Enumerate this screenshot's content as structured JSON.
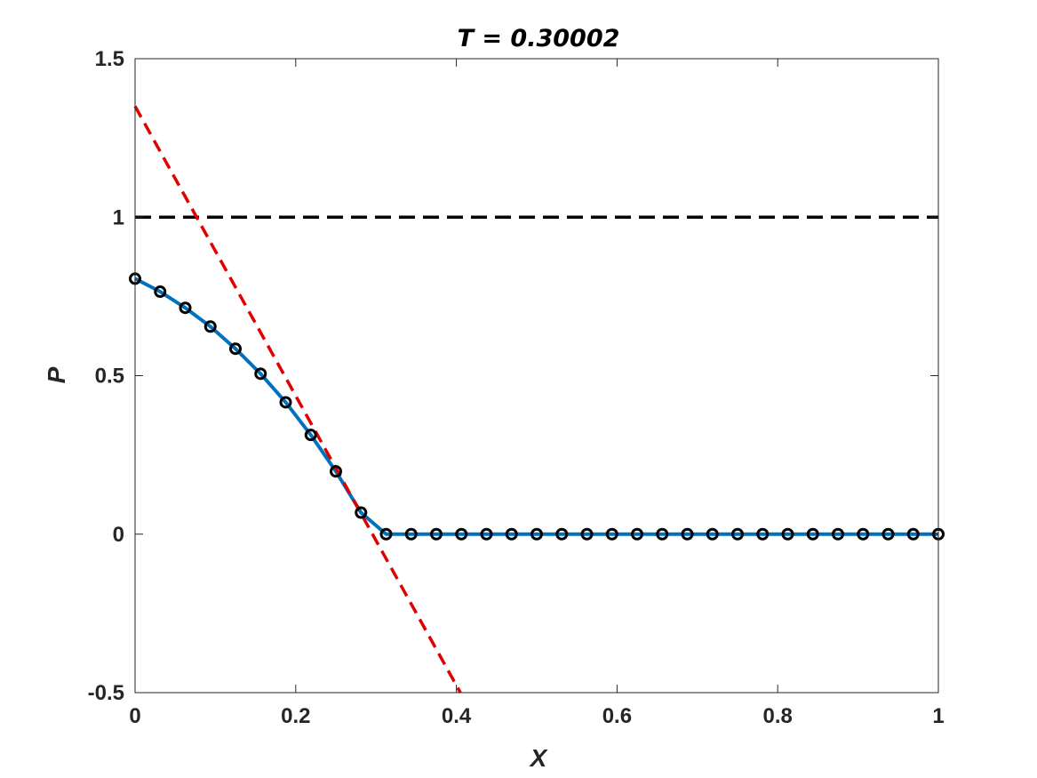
{
  "chart_data": {
    "type": "line",
    "title": "T = 0.30002",
    "xlabel": "X",
    "ylabel": "P",
    "xlim": [
      0,
      1
    ],
    "ylim": [
      -0.5,
      1.5
    ],
    "xticks": [
      0,
      0.2,
      0.4,
      0.6,
      0.8,
      1
    ],
    "xtick_labels": [
      "0",
      "0.2",
      "0.4",
      "0.6",
      "0.8",
      "1"
    ],
    "yticks": [
      -0.5,
      0,
      0.5,
      1,
      1.5
    ],
    "ytick_labels": [
      "-0.5",
      "0",
      "0.5",
      "1",
      "1.5"
    ],
    "grid": false,
    "colors": {
      "solution": "#0072BD",
      "markers": "#000000",
      "reference": "#000000",
      "tangent": "#E00000",
      "axes": "#262626"
    },
    "series": [
      {
        "x": [
          0,
          0.03125,
          0.0625,
          0.09375,
          0.125,
          0.15625,
          0.1875,
          0.21875,
          0.25,
          0.28125,
          0.3125,
          0.34375,
          0.375,
          0.40625,
          0.4375,
          0.46875,
          0.5,
          0.53125,
          0.5625,
          0.59375,
          0.625,
          0.65625,
          0.6875,
          0.71875,
          0.75,
          0.78125,
          0.8125,
          0.84375,
          0.875,
          0.90625,
          0.9375,
          0.96875,
          1
        ],
        "y": [
          0.806,
          0.765,
          0.714,
          0.655,
          0.585,
          0.506,
          0.416,
          0.313,
          0.198,
          0.068,
          0,
          0,
          0,
          0,
          0,
          0,
          0,
          0,
          0,
          0,
          0,
          0,
          0,
          0,
          0,
          0,
          0,
          0,
          0,
          0,
          0,
          0,
          0
        ],
        "style": "solid line with circle markers"
      },
      {
        "x": [
          0,
          1
        ],
        "y": [
          1,
          1
        ],
        "style": "black dashed"
      },
      {
        "x": [
          0,
          0.405
        ],
        "y": [
          1.35,
          -0.5
        ],
        "style": "red dashed"
      }
    ]
  }
}
